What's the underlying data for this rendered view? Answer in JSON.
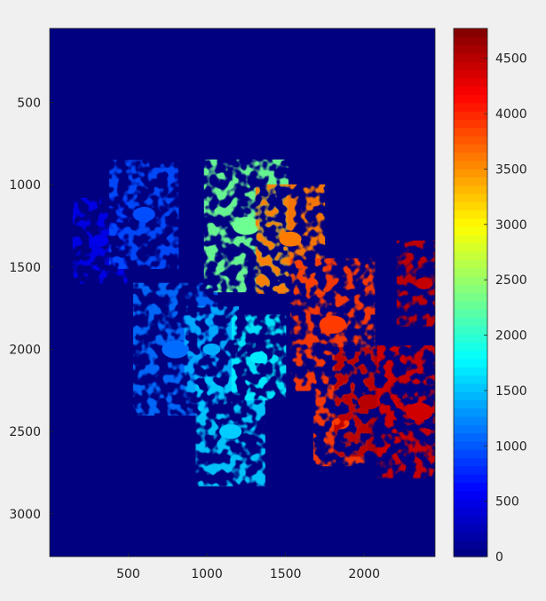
{
  "chart_data": {
    "type": "heatmap",
    "title": "",
    "xlabel": "",
    "ylabel": "",
    "xlim": [
      1,
      2450
    ],
    "ylim": [
      3260,
      50
    ],
    "y_direction": "reversed",
    "x_ticks": [
      500,
      1000,
      1500,
      2000
    ],
    "y_ticks": [
      500,
      1000,
      1500,
      2000,
      2500,
      3000
    ],
    "colormap": "jet",
    "colorbar": {
      "limits": [
        0,
        4770
      ],
      "ticks": [
        0,
        500,
        1000,
        1500,
        2000,
        2500,
        3000,
        3500,
        4000,
        4500
      ],
      "levels": 64
    },
    "background_value": 0,
    "regions": [
      {
        "x": 320,
        "y": 1340,
        "value": 500
      },
      {
        "x": 600,
        "y": 1180,
        "value": 950
      },
      {
        "x": 800,
        "y": 2000,
        "value": 1100
      },
      {
        "x": 1030,
        "y": 2000,
        "value": 1400
      },
      {
        "x": 1150,
        "y": 2500,
        "value": 1550
      },
      {
        "x": 1250,
        "y": 1250,
        "value": 2300
      },
      {
        "x": 1330,
        "y": 2050,
        "value": 1700
      },
      {
        "x": 1530,
        "y": 1330,
        "value": 3600
      },
      {
        "x": 1800,
        "y": 1850,
        "value": 3900
      },
      {
        "x": 1850,
        "y": 2450,
        "value": 3900
      },
      {
        "x": 2030,
        "y": 2320,
        "value": 4500
      },
      {
        "x": 2350,
        "y": 2380,
        "value": 4400
      },
      {
        "x": 2380,
        "y": 1600,
        "value": 4450
      }
    ]
  }
}
